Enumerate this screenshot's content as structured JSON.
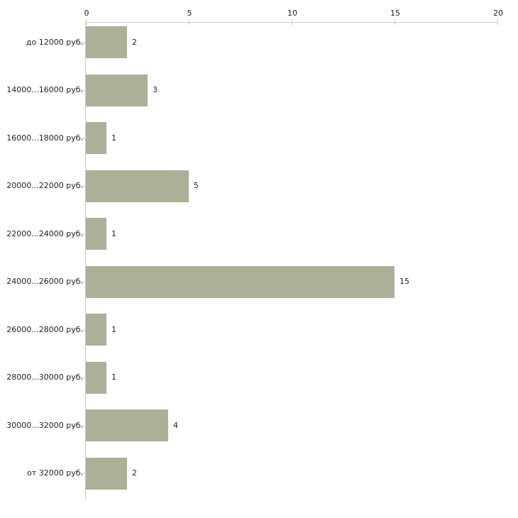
{
  "chart_data": {
    "type": "bar",
    "orientation": "horizontal",
    "title": "",
    "xlabel": "",
    "ylabel": "",
    "categories": [
      "до 12000 руб.",
      "14000...16000 руб.",
      "16000...18000 руб.",
      "20000...22000 руб.",
      "22000...24000 руб.",
      "24000...26000 руб.",
      "26000...28000 руб.",
      "28000...30000 руб.",
      "30000...32000 руб.",
      "от 32000 руб."
    ],
    "values": [
      2,
      3,
      1,
      5,
      1,
      15,
      1,
      1,
      4,
      2
    ],
    "value_labels": [
      "2",
      "3",
      "1",
      "5",
      "1",
      "15",
      "1",
      "1",
      "4",
      "2"
    ],
    "x_ticks": [
      0,
      5,
      10,
      15,
      20
    ],
    "x_tick_labels": [
      "0",
      "5",
      "10",
      "15",
      "20"
    ],
    "xlim": [
      0,
      20
    ],
    "grid": false,
    "legend": false,
    "axis_position": "top",
    "colors": {
      "bar": "#abb199",
      "axis_line": "#c9c9c9",
      "tick_mark": "#cccc99",
      "text": "#222222",
      "background": "#ffffff"
    }
  }
}
